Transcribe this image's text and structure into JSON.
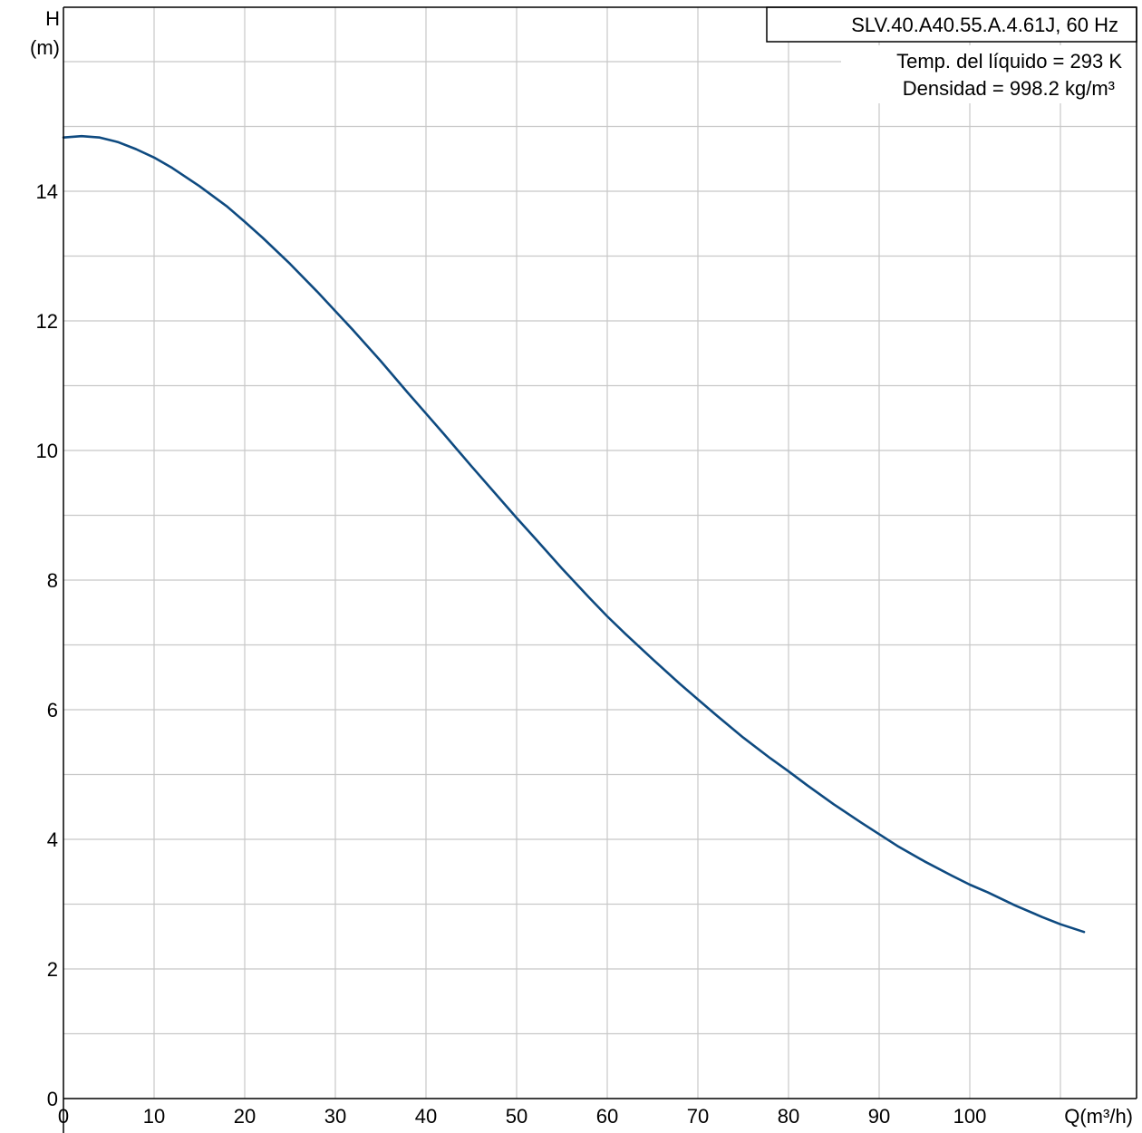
{
  "chart_data": {
    "type": "line",
    "title": "SLV.40.A40.55.A.4.61J, 60 Hz",
    "annotations": [
      "Temp. del líquido = 293 K",
      "Densidad = 998.2 kg/m³"
    ],
    "xlabel": "Q(m³/h)",
    "ylabel_line1": "H",
    "ylabel_line2": "(m)",
    "xlim": [
      0,
      118
    ],
    "ylim": [
      0,
      16
    ],
    "x_ticks": [
      0,
      10,
      20,
      30,
      40,
      50,
      60,
      70,
      80,
      90,
      100
    ],
    "y_ticks": [
      0,
      2,
      4,
      6,
      8,
      10,
      12,
      14
    ],
    "grid": true,
    "series": [
      {
        "color": "#0e4a80",
        "x": [
          0,
          2,
          4,
          6,
          8,
          10,
          12,
          15,
          18,
          20,
          22,
          25,
          28,
          30,
          32,
          35,
          38,
          40,
          42,
          45,
          48,
          50,
          52,
          55,
          58,
          60,
          62,
          65,
          68,
          70,
          72,
          75,
          78,
          80,
          82,
          85,
          88,
          90,
          92,
          95,
          98,
          100,
          102,
          105,
          108,
          110,
          112.6
        ],
        "y": [
          14.83,
          14.85,
          14.83,
          14.76,
          14.65,
          14.52,
          14.36,
          14.08,
          13.77,
          13.53,
          13.28,
          12.88,
          12.45,
          12.15,
          11.85,
          11.38,
          10.89,
          10.57,
          10.25,
          9.76,
          9.28,
          8.96,
          8.65,
          8.18,
          7.73,
          7.44,
          7.17,
          6.78,
          6.4,
          6.16,
          5.92,
          5.57,
          5.25,
          5.05,
          4.84,
          4.54,
          4.26,
          4.08,
          3.9,
          3.66,
          3.44,
          3.3,
          3.18,
          2.98,
          2.8,
          2.69,
          2.57
        ]
      }
    ]
  },
  "colors": {
    "grid": "#c8c8c8",
    "frame": "#000000",
    "curve": "#0e4a80"
  }
}
